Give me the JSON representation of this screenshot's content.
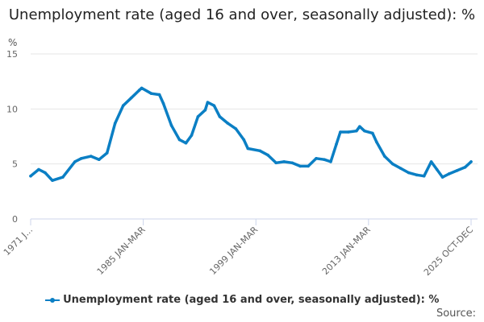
{
  "chart_data": {
    "type": "line",
    "title": "Unemployment rate (aged 16 and over, seasonally adjusted): %",
    "ylabel": "%",
    "xlabel": "",
    "ylim": [
      0,
      15
    ],
    "yticks": [
      0,
      5,
      10,
      15
    ],
    "xlim": [
      1971.0,
      2025.75
    ],
    "xticks": [
      {
        "x": 1971.0,
        "label": "1971 J..."
      },
      {
        "x": 1985.0,
        "label": "1985 JAN-MAR"
      },
      {
        "x": 1999.0,
        "label": "1999 JAN-MAR"
      },
      {
        "x": 2013.0,
        "label": "2013 JAN-MAR"
      },
      {
        "x": 2025.75,
        "label": "2025 OCT-DEC"
      }
    ],
    "grid": true,
    "legend_position": "bottom",
    "series": [
      {
        "name": "Unemployment rate (aged 16 and over, seasonally adjusted): %",
        "color": "#0b7fc4",
        "x": [
          1971.0,
          1972.0,
          1972.8,
          1973.7,
          1975.0,
          1976.5,
          1977.3,
          1978.5,
          1979.5,
          1980.5,
          1981.5,
          1982.5,
          1983.5,
          1984.5,
          1984.8,
          1986.0,
          1987.0,
          1987.5,
          1988.5,
          1989.5,
          1990.3,
          1991.0,
          1991.8,
          1992.7,
          1993.0,
          1993.8,
          1994.5,
          1995.5,
          1996.5,
          1997.5,
          1998.0,
          1999.5,
          2000.5,
          2001.5,
          2002.5,
          2003.5,
          2004.5,
          2005.5,
          2006.5,
          2007.5,
          2008.3,
          2009.0,
          2009.5,
          2010.5,
          2011.5,
          2011.9,
          2012.5,
          2013.5,
          2014.0,
          2015.0,
          2016.0,
          2017.0,
          2018.0,
          2019.0,
          2019.9,
          2020.8,
          2021.5,
          2022.2,
          2023.0,
          2024.0,
          2025.0,
          2025.75
        ],
        "y": [
          3.9,
          4.5,
          4.2,
          3.5,
          3.8,
          5.2,
          5.5,
          5.7,
          5.4,
          6.0,
          8.7,
          10.3,
          11.0,
          11.7,
          11.9,
          11.4,
          11.3,
          10.5,
          8.5,
          7.2,
          6.9,
          7.6,
          9.3,
          9.9,
          10.6,
          10.3,
          9.3,
          8.7,
          8.2,
          7.2,
          6.4,
          6.2,
          5.8,
          5.1,
          5.2,
          5.1,
          4.8,
          4.8,
          5.5,
          5.4,
          5.2,
          6.8,
          7.9,
          7.9,
          8.0,
          8.4,
          8.0,
          7.8,
          7.0,
          5.7,
          5.0,
          4.6,
          4.2,
          4.0,
          3.9,
          5.2,
          4.5,
          3.8,
          4.1,
          4.4,
          4.7,
          5.2
        ]
      }
    ]
  },
  "footer": {
    "source_label": "Source:"
  }
}
